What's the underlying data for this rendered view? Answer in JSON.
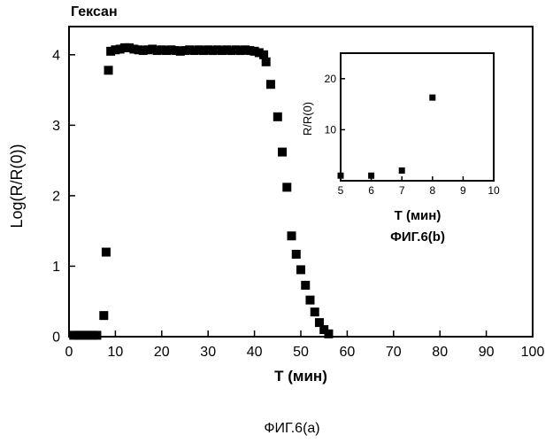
{
  "chart_data": [
    {
      "type": "scatter",
      "title": "Гексан",
      "caption": "ФИГ.6(a)",
      "xlabel": "T (мин)",
      "ylabel": "Log(R/R(0))",
      "xlim": [
        0,
        100
      ],
      "ylim": [
        0,
        4.4
      ],
      "xticks": [
        0,
        10,
        20,
        30,
        40,
        50,
        60,
        70,
        80,
        90,
        100
      ],
      "yticks": [
        0,
        1,
        2,
        3,
        4
      ],
      "grid": false,
      "marker": "square",
      "color": "#000000",
      "x": [
        1,
        2,
        3,
        4,
        5,
        6,
        7.5,
        8,
        8.5,
        9,
        10,
        11,
        12,
        13,
        14,
        15,
        16,
        17,
        18,
        19,
        20,
        21,
        22,
        23,
        24,
        25,
        26,
        27,
        28,
        29,
        30,
        31,
        32,
        33,
        34,
        35,
        36,
        37,
        38,
        39,
        40,
        41,
        42,
        42.5,
        43.5,
        45,
        46,
        47,
        48,
        49,
        50,
        51,
        52,
        53,
        54,
        55,
        56
      ],
      "y": [
        0.02,
        0.02,
        0.02,
        0.02,
        0.02,
        0.02,
        0.3,
        1.2,
        3.78,
        4.05,
        4.07,
        4.08,
        4.1,
        4.1,
        4.08,
        4.07,
        4.06,
        4.07,
        4.08,
        4.06,
        4.07,
        4.06,
        4.07,
        4.06,
        4.05,
        4.06,
        4.07,
        4.06,
        4.07,
        4.06,
        4.07,
        4.06,
        4.07,
        4.06,
        4.07,
        4.06,
        4.07,
        4.06,
        4.07,
        4.06,
        4.05,
        4.03,
        4.0,
        3.9,
        3.58,
        3.12,
        2.62,
        2.12,
        1.43,
        1.17,
        0.95,
        0.73,
        0.52,
        0.35,
        0.2,
        0.1,
        0.04
      ]
    },
    {
      "type": "scatter",
      "caption": "ФИГ.6(b)",
      "xlabel": "T (мин)",
      "ylabel": "R/R(0)",
      "xlim": [
        5,
        10
      ],
      "ylim": [
        0,
        25
      ],
      "xticks": [
        5,
        6,
        7,
        8,
        9,
        10
      ],
      "yticks": [
        10,
        20
      ],
      "grid": false,
      "marker": "square",
      "color": "#000000",
      "x": [
        5,
        6,
        7,
        8
      ],
      "y": [
        1,
        1,
        2,
        16.3
      ]
    }
  ]
}
